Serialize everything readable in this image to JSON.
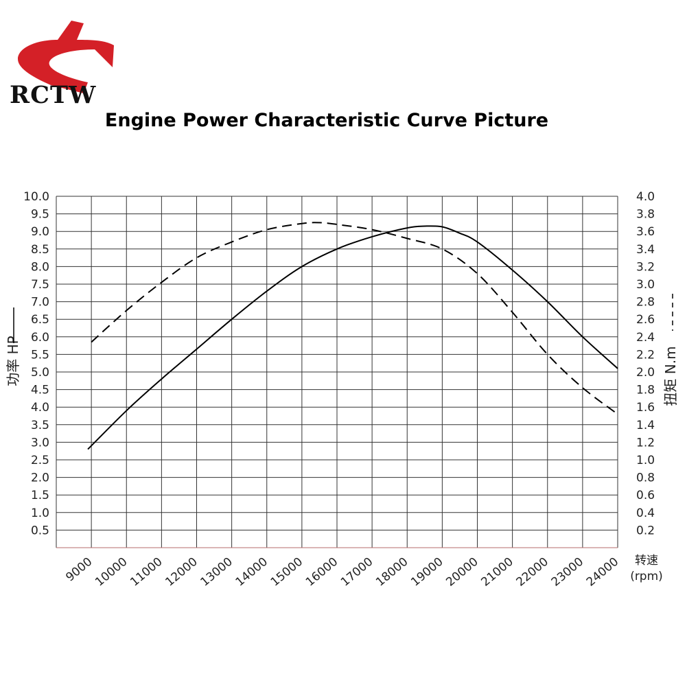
{
  "brand": {
    "name": "RCTW",
    "logo_color": "#d42027"
  },
  "title": "Engine Power Characteristic Curve Picture",
  "chart_data": {
    "type": "line",
    "title": "Engine Power Characteristic Curve Picture",
    "xlabel": "转速",
    "xunit": "(rpm)",
    "ylabel_left": "功率 HP",
    "ylabel_right": "扭矩 N.m",
    "x_ticks": [
      9000,
      10000,
      11000,
      12000,
      13000,
      14000,
      15000,
      16000,
      17000,
      18000,
      19000,
      20000,
      21000,
      22000,
      23000,
      24000
    ],
    "xlim": [
      8000,
      24000
    ],
    "ylim_left": [
      0,
      10
    ],
    "ylim_right": [
      0,
      4
    ],
    "y_left_ticks": [
      "0.5",
      "1.0",
      "1.5",
      "2.0",
      "2.5",
      "3.0",
      "3.5",
      "4.0",
      "4.5",
      "5.0",
      "5.5",
      "6.0",
      "6.5",
      "7.0",
      "7.5",
      "8.0",
      "8.5",
      "9.0",
      "9.5",
      "10.0"
    ],
    "y_right_ticks": [
      "0.2",
      "0.4",
      "0.6",
      "0.8",
      "1.0",
      "1.2",
      "1.4",
      "1.6",
      "1.8",
      "2.0",
      "2.2",
      "2.4",
      "2.6",
      "2.8",
      "3.0",
      "3.2",
      "3.4",
      "3.6",
      "3.8",
      "4.0"
    ],
    "grid": true,
    "series": [
      {
        "name": "功率 HP",
        "axis": "left",
        "style": "solid",
        "x": [
          8900,
          10000,
          11000,
          12000,
          13000,
          14000,
          15000,
          16000,
          17000,
          18000,
          18500,
          19000,
          19500,
          20000,
          21000,
          22000,
          23000,
          24000
        ],
        "y": [
          2.8,
          3.9,
          4.8,
          5.65,
          6.5,
          7.3,
          8.0,
          8.5,
          8.85,
          9.1,
          9.15,
          9.13,
          8.95,
          8.7,
          7.9,
          7.0,
          6.0,
          5.1
        ]
      },
      {
        "name": "扭矩 N.m",
        "axis": "right",
        "style": "dashed",
        "x": [
          9000,
          10000,
          11000,
          12000,
          13000,
          14000,
          15000,
          15500,
          16000,
          17000,
          18000,
          19000,
          20000,
          21000,
          22000,
          23000,
          24000
        ],
        "y": [
          2.34,
          2.7,
          3.02,
          3.3,
          3.48,
          3.62,
          3.69,
          3.7,
          3.68,
          3.62,
          3.52,
          3.4,
          3.12,
          2.68,
          2.2,
          1.82,
          1.52
        ]
      }
    ]
  }
}
